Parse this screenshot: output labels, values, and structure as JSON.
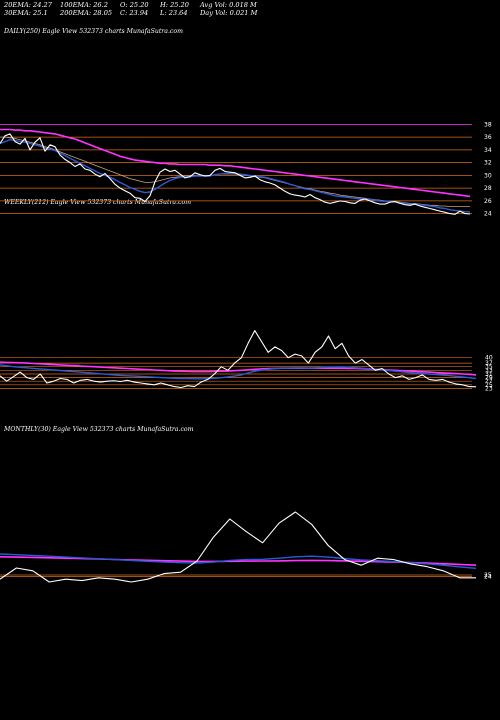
{
  "header": {
    "ema20": "20EMA: 24.27",
    "ema30": "30EMA: 25.1",
    "ema100": "100EMA: 26.2",
    "ema200": "200EMA: 28.05",
    "open": "O: 25.20",
    "close": "C: 23.94",
    "high": "H: 25.20",
    "low": "L: 23.64",
    "avg_vol": "Avg Vol: 0.018 M",
    "day_vol": "Day Vol: 0.021 M"
  },
  "colors": {
    "background": "#000000",
    "price": "#ffffff",
    "ema_short": "#2a5bd7",
    "ema_long": "#ff33ff",
    "ema_mid": "#c8a07a",
    "level_line": "#d96b1c"
  },
  "chart_data": [
    {
      "type": "line",
      "title": "DAILY(250) Eagle  View  532373 charts MunafaSutra.com",
      "yticks": [
        38,
        36,
        34,
        32,
        30,
        28,
        26,
        24
      ],
      "ylim": [
        23,
        39
      ],
      "series": [
        {
          "key": "price",
          "values": [
            35.0,
            36.2,
            36.5,
            35.3,
            34.9,
            35.8,
            34.0,
            35.2,
            35.9,
            33.8,
            34.8,
            34.5,
            33.2,
            32.5,
            32.0,
            31.4,
            31.8,
            31.0,
            30.8,
            30.2,
            29.8,
            30.3,
            29.5,
            28.6,
            28.0,
            27.6,
            27.2,
            26.5,
            26.4,
            25.9,
            26.8,
            29.0,
            30.5,
            31.0,
            30.6,
            30.8,
            30.2,
            29.6,
            29.8,
            30.4,
            30.1,
            29.9,
            30.0,
            30.8,
            31.1,
            30.6,
            30.5,
            30.4,
            30.0,
            29.6,
            29.7,
            29.9,
            29.3,
            29.0,
            28.8,
            28.5,
            28.0,
            27.5,
            27.1,
            26.9,
            26.8,
            26.6,
            27.0,
            26.5,
            26.2,
            25.8,
            25.6,
            25.8,
            26.0,
            25.9,
            25.7,
            25.6,
            26.1,
            26.3,
            26.0,
            25.7,
            25.5,
            25.5,
            25.8,
            25.9,
            25.6,
            25.4,
            25.3,
            25.5,
            25.2,
            25.0,
            24.8,
            24.6,
            24.4,
            24.2,
            24.0,
            23.9,
            24.4,
            24.0,
            23.94
          ]
        },
        {
          "key": "ema_short",
          "values": [
            35.0,
            35.3,
            35.6,
            35.5,
            35.3,
            35.2,
            35.0,
            34.8,
            34.6,
            34.3,
            34.1,
            33.9,
            33.5,
            33.1,
            32.7,
            32.3,
            31.9,
            31.5,
            31.1,
            30.7,
            30.3,
            30.0,
            29.7,
            29.3,
            28.9,
            28.5,
            28.1,
            27.8,
            27.5,
            27.3,
            27.4,
            27.8,
            28.3,
            28.8,
            29.2,
            29.5,
            29.7,
            29.8,
            29.8,
            29.9,
            29.9,
            29.9,
            29.9,
            30.1,
            30.2,
            30.3,
            30.3,
            30.3,
            30.2,
            30.1,
            30.0,
            29.9,
            29.8,
            29.7,
            29.5,
            29.3,
            29.1,
            28.9,
            28.6,
            28.4,
            28.1,
            27.9,
            27.8,
            27.6,
            27.4,
            27.2,
            27.0,
            26.8,
            26.7,
            26.6,
            26.5,
            26.4,
            26.3,
            26.3,
            26.2,
            26.1,
            26.0,
            25.9,
            25.9,
            25.8,
            25.7,
            25.6,
            25.5,
            25.5,
            25.4,
            25.3,
            25.2,
            25.1,
            24.9,
            24.8,
            24.6,
            24.5,
            24.4,
            24.3,
            24.27
          ]
        },
        {
          "key": "ema_mid",
          "values": [
            36.0,
            36.0,
            35.9,
            35.8,
            35.6,
            35.4,
            35.2,
            35.0,
            34.8,
            34.5,
            34.3,
            34.0,
            33.7,
            33.4,
            33.1,
            32.8,
            32.5,
            32.2,
            31.9,
            31.6,
            31.3,
            31.0,
            30.7,
            30.4,
            30.1,
            29.8,
            29.5,
            29.3,
            29.1,
            28.9,
            28.9,
            29.0,
            29.2,
            29.4,
            29.6,
            29.7,
            29.8,
            29.9,
            29.9,
            30.0,
            30.0,
            30.0,
            30.0,
            30.1,
            30.2,
            30.2,
            30.2,
            30.2,
            30.1,
            30.0,
            29.9,
            29.8,
            29.7,
            29.6,
            29.4,
            29.2,
            29.0,
            28.8,
            28.6,
            28.4,
            28.2,
            28.0,
            27.9,
            27.7,
            27.5,
            27.4,
            27.2,
            27.1,
            26.9,
            26.8,
            26.7,
            26.6,
            26.5,
            26.4,
            26.3,
            26.2,
            26.1,
            26.0,
            25.9,
            25.9,
            25.8,
            25.7,
            25.6,
            25.6,
            25.5,
            25.4,
            25.3,
            25.3,
            25.2,
            25.2,
            25.1,
            25.1,
            25.1,
            25.1,
            25.1
          ]
        },
        {
          "key": "ema_long",
          "values": [
            37.2,
            37.2,
            37.2,
            37.1,
            37.1,
            37.0,
            37.0,
            36.9,
            36.8,
            36.7,
            36.6,
            36.5,
            36.3,
            36.1,
            35.9,
            35.7,
            35.4,
            35.1,
            34.8,
            34.5,
            34.2,
            33.9,
            33.6,
            33.3,
            33.0,
            32.8,
            32.6,
            32.4,
            32.3,
            32.2,
            32.1,
            32.0,
            31.9,
            31.9,
            31.8,
            31.8,
            31.7,
            31.7,
            31.7,
            31.7,
            31.7,
            31.7,
            31.6,
            31.6,
            31.6,
            31.5,
            31.5,
            31.4,
            31.3,
            31.2,
            31.1,
            31.0,
            30.9,
            30.8,
            30.7,
            30.6,
            30.5,
            30.4,
            30.3,
            30.2,
            30.1,
            30.0,
            29.9,
            29.8,
            29.7,
            29.6,
            29.5,
            29.4,
            29.3,
            29.2,
            29.1,
            29.0,
            28.9,
            28.8,
            28.7,
            28.6,
            28.5,
            28.4,
            28.3,
            28.2,
            28.1,
            28.0,
            27.9,
            27.8,
            27.7,
            27.6,
            27.5,
            27.4,
            27.3,
            27.2,
            27.1,
            27.0,
            26.9,
            26.8,
            26.7
          ]
        }
      ]
    },
    {
      "type": "line",
      "title": "WEEKLY(212) Eagle  View  532373 charts MunafaSutra.com",
      "yticks": [
        40,
        37,
        35,
        33,
        31,
        29,
        27,
        25,
        23
      ],
      "ylim": [
        21,
        62
      ],
      "series": [
        {
          "key": "price",
          "values": [
            30.0,
            27.0,
            29.5,
            32.0,
            29.0,
            28.0,
            31.0,
            26.0,
            27.0,
            28.5,
            28.0,
            26.0,
            27.5,
            28.0,
            27.0,
            26.5,
            27.0,
            27.2,
            26.8,
            27.5,
            26.5,
            26.0,
            25.5,
            25.0,
            26.0,
            25.0,
            24.0,
            23.5,
            24.5,
            24.0,
            26.5,
            28.0,
            31.0,
            35.0,
            33.0,
            37.0,
            40.0,
            48.0,
            55.0,
            49.0,
            43.0,
            46.0,
            44.0,
            40.0,
            42.0,
            41.0,
            37.0,
            43.0,
            46.0,
            52.0,
            45.0,
            48.0,
            41.0,
            37.0,
            39.0,
            36.0,
            33.0,
            34.0,
            31.0,
            29.0,
            30.0,
            28.0,
            29.0,
            30.5,
            28.0,
            27.5,
            28.0,
            26.5,
            25.5,
            25.0,
            24.0,
            23.9
          ]
        },
        {
          "key": "ema_short",
          "values": [
            36.0,
            35.5,
            35.0,
            34.7,
            34.4,
            34.1,
            33.8,
            33.5,
            33.2,
            32.9,
            32.6,
            32.3,
            32.0,
            31.7,
            31.4,
            31.1,
            30.8,
            30.5,
            30.2,
            30.0,
            29.8,
            29.6,
            29.4,
            29.2,
            29.0,
            28.8,
            28.6,
            28.5,
            28.4,
            28.3,
            28.3,
            28.4,
            28.6,
            28.9,
            29.3,
            29.8,
            30.5,
            31.5,
            32.5,
            33.2,
            33.6,
            34.0,
            34.2,
            34.2,
            34.3,
            34.3,
            34.2,
            34.3,
            34.5,
            34.8,
            34.8,
            34.9,
            34.7,
            34.4,
            34.2,
            33.9,
            33.5,
            33.3,
            32.9,
            32.5,
            32.2,
            31.8,
            31.5,
            31.3,
            31.0,
            30.7,
            30.4,
            30.1,
            29.7,
            29.3,
            28.9,
            28.5
          ]
        },
        {
          "key": "ema_long",
          "values": [
            37.5,
            37.4,
            37.3,
            37.2,
            37.0,
            36.8,
            36.6,
            36.4,
            36.2,
            36.0,
            35.8,
            35.6,
            35.4,
            35.2,
            35.0,
            34.8,
            34.6,
            34.4,
            34.2,
            34.0,
            33.8,
            33.6,
            33.4,
            33.2,
            33.0,
            32.8,
            32.6,
            32.5,
            32.4,
            32.3,
            32.3,
            32.3,
            32.4,
            32.5,
            32.6,
            32.8,
            33.0,
            33.3,
            33.6,
            33.8,
            34.0,
            34.1,
            34.2,
            34.2,
            34.2,
            34.2,
            34.2,
            34.2,
            34.2,
            34.2,
            34.2,
            34.2,
            34.1,
            34.0,
            33.9,
            33.7,
            33.5,
            33.4,
            33.2,
            33.0,
            32.8,
            32.6,
            32.4,
            32.2,
            32.0,
            31.8,
            31.6,
            31.4,
            31.2,
            31.0,
            30.8,
            30.5
          ]
        }
      ]
    },
    {
      "type": "line",
      "title": "MONTHLY(30) Eagle  View  532373 charts MunafaSutra.com",
      "yticks": [
        25,
        24
      ],
      "ylim": [
        10,
        80
      ],
      "series": [
        {
          "key": "price",
          "values": [
            22,
            30,
            28,
            20,
            22,
            21,
            23,
            22,
            20,
            22,
            26,
            27,
            35,
            52,
            65,
            56,
            48,
            62,
            70,
            61,
            46,
            36,
            32,
            37,
            36,
            33,
            31,
            28,
            23,
            23
          ]
        },
        {
          "key": "ema_short",
          "values": [
            40,
            39.5,
            39,
            38.4,
            37.8,
            37.2,
            36.6,
            36,
            35.4,
            34.8,
            34.3,
            33.8,
            33.6,
            34.2,
            35.4,
            36,
            36.2,
            37,
            38,
            38.4,
            37.8,
            36.8,
            35.8,
            35.2,
            34.6,
            33.8,
            33,
            32,
            30.8,
            29.8
          ]
        },
        {
          "key": "ema_long",
          "values": [
            38,
            37.8,
            37.6,
            37.3,
            37,
            36.7,
            36.4,
            36.1,
            35.8,
            35.5,
            35.2,
            34.9,
            34.7,
            34.7,
            34.8,
            34.9,
            35,
            35.1,
            35.3,
            35.4,
            35.3,
            35.1,
            34.8,
            34.5,
            34.2,
            33.9,
            33.5,
            33.1,
            32.6,
            32
          ]
        }
      ]
    }
  ]
}
